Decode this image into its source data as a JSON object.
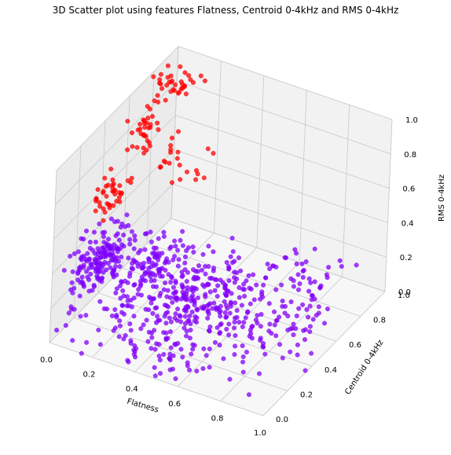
{
  "chart_data": {
    "type": "scatter",
    "projection": "3d",
    "title": "3D Scatter plot using features Flatness, Centroid 0-4kHz and RMS 0-4kHz",
    "xlabel": "Flatness",
    "ylabel": "Centroid 0-4kHz",
    "zlabel": "RMS 0-4kHz",
    "xlim": [
      0,
      1
    ],
    "ylim": [
      0,
      1
    ],
    "zlim": [
      0,
      1
    ],
    "grid": true,
    "x_ticks": [
      "0.0",
      "0.2",
      "0.4",
      "0.6",
      "0.8",
      "1.0"
    ],
    "y_ticks": [
      "0.0",
      "0.2",
      "0.4",
      "0.6",
      "0.8",
      "1.0"
    ],
    "z_ticks": [
      "0.0",
      "0.2",
      "0.4",
      "0.6",
      "0.8",
      "1.0"
    ],
    "colormap": "rainbow",
    "color_low": "#7f00ff",
    "color_high": "#ff0000",
    "cluster_colors": {
      "loud_low_flatness": "#ff0000",
      "quiet": "#8000ff"
    },
    "clusters": [
      {
        "center_x": 0.07,
        "center_y": 0.8,
        "center_z": 0.95,
        "spread": [
          0.035,
          0.05,
          0.04
        ],
        "count": 28,
        "color_value": 1.0
      },
      {
        "center_x": 0.11,
        "center_y": 0.92,
        "center_z": 0.92,
        "spread": [
          0.03,
          0.04,
          0.03
        ],
        "count": 10,
        "color_value": 1.0
      },
      {
        "center_x": 0.05,
        "center_y": 0.62,
        "center_z": 0.78,
        "spread": [
          0.03,
          0.05,
          0.05
        ],
        "count": 32,
        "color_value": 1.0
      },
      {
        "center_x": 0.04,
        "center_y": 0.4,
        "center_z": 0.6,
        "spread": [
          0.03,
          0.06,
          0.05
        ],
        "count": 40,
        "color_value": 1.0
      },
      {
        "center_x": 0.13,
        "center_y": 0.72,
        "center_z": 0.62,
        "spread": [
          0.03,
          0.06,
          0.05
        ],
        "count": 14,
        "color_value": 1.0
      },
      {
        "center_x": 0.18,
        "center_y": 0.9,
        "center_z": 0.42,
        "spread": [
          0.03,
          0.05,
          0.04
        ],
        "count": 8,
        "color_value": 1.0
      },
      {
        "center_x": 0.05,
        "center_y": 0.3,
        "center_z": 0.28,
        "spread": [
          0.04,
          0.1,
          0.08
        ],
        "count": 160,
        "color_value": 0.0
      },
      {
        "center_x": 0.14,
        "center_y": 0.55,
        "center_z": 0.1,
        "spread": [
          0.06,
          0.14,
          0.05
        ],
        "count": 120,
        "color_value": 0.0
      },
      {
        "center_x": 0.35,
        "center_y": 0.55,
        "center_z": 0.06,
        "spread": [
          0.1,
          0.16,
          0.04
        ],
        "count": 170,
        "color_value": 0.02
      },
      {
        "center_x": 0.55,
        "center_y": 0.5,
        "center_z": 0.04,
        "spread": [
          0.12,
          0.16,
          0.03
        ],
        "count": 120,
        "color_value": 0.03
      },
      {
        "center_x": 0.8,
        "center_y": 0.55,
        "center_z": 0.03,
        "spread": [
          0.08,
          0.15,
          0.03
        ],
        "count": 55,
        "color_value": 0.04
      },
      {
        "center_x": 0.4,
        "center_y": 0.15,
        "center_z": 0.05,
        "spread": [
          0.18,
          0.1,
          0.04
        ],
        "count": 80,
        "color_value": 0.02
      },
      {
        "center_x": 0.7,
        "center_y": 0.85,
        "center_z": 0.05,
        "spread": [
          0.1,
          0.08,
          0.04
        ],
        "count": 35,
        "color_value": 0.02
      }
    ]
  }
}
